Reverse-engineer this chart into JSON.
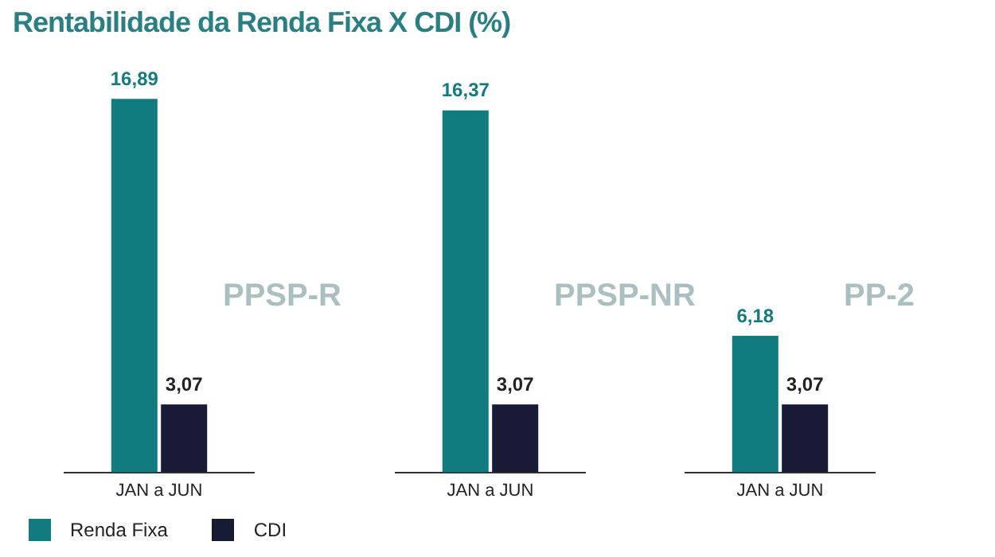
{
  "chart_data": [
    {
      "type": "bar",
      "title": "Rentabilidade da Renda Fixa X CDI (%)",
      "subtitle": "PPSP-R",
      "categories": [
        "JAN a JUN"
      ],
      "series": [
        {
          "name": "Renda Fixa",
          "color": "#127b80",
          "values": [
            16.89
          ],
          "value_labels": [
            "16,89"
          ]
        },
        {
          "name": "CDI",
          "color": "#151c33",
          "values": [
            3.07
          ],
          "value_labels": [
            "3,07"
          ]
        }
      ],
      "legend": "bottom left",
      "grid": false
    },
    {
      "type": "bar",
      "subtitle": "PPSP-NR",
      "categories": [
        "JAN a JUN"
      ],
      "series": [
        {
          "color": "#127b80",
          "values": [
            16.37
          ],
          "value_labels": [
            "16,37"
          ]
        },
        {
          "color": "#151c33",
          "values": [
            3.07
          ],
          "value_labels": [
            "3,07"
          ]
        }
      ],
      "grid": false
    },
    {
      "type": "bar",
      "subtitle": "PP-2",
      "categories": [
        "JAN a JUN"
      ],
      "series": [
        {
          "color": "#127b80",
          "values": [
            6.18
          ],
          "value_labels": [
            "6,18"
          ]
        },
        {
          "color": "#151c33",
          "values": [
            3.07
          ],
          "value_labels": [
            "3,07"
          ]
        }
      ],
      "grid": false
    }
  ]
}
